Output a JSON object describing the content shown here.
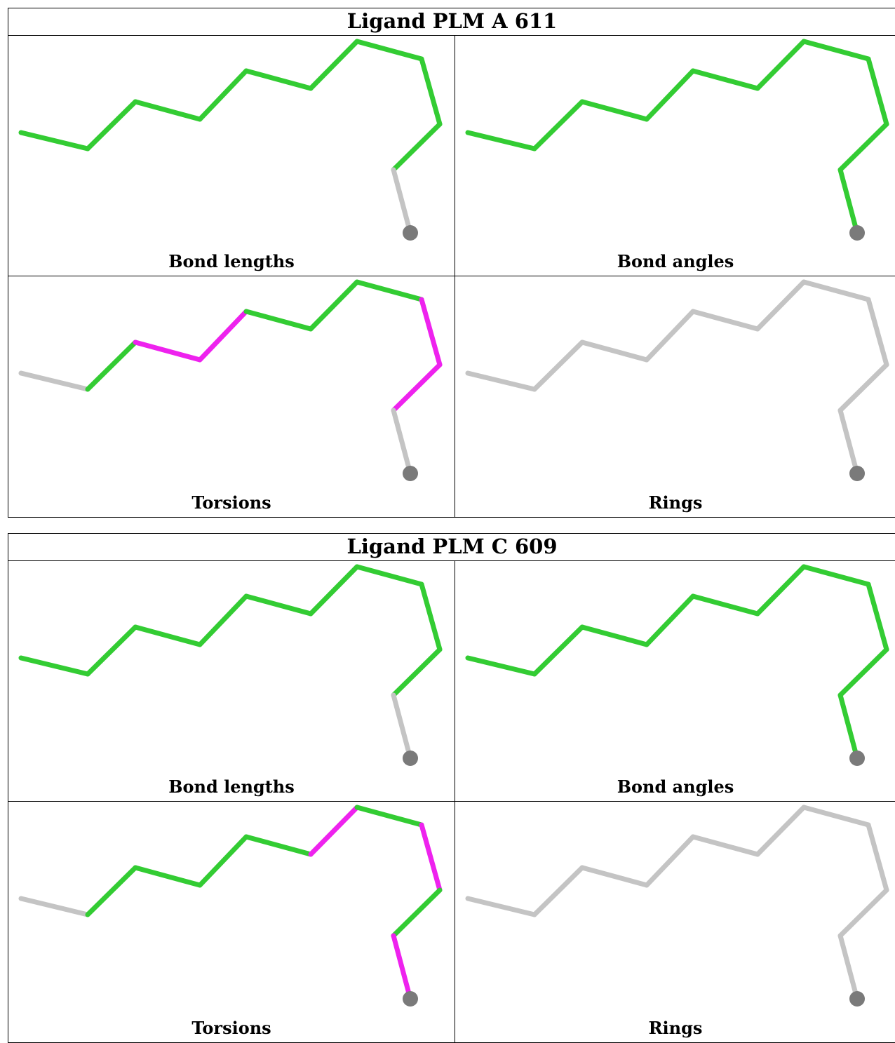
{
  "ligands": [
    {
      "title": "Ligand PLM A 611",
      "panels": [
        {
          "label": "Bond lengths",
          "bond_colors": [
            "green",
            "green",
            "green",
            "green",
            "green",
            "green",
            "green",
            "green",
            "green",
            "gray",
            "green"
          ]
        },
        {
          "label": "Bond angles",
          "bond_colors": [
            "green",
            "green",
            "green",
            "green",
            "green",
            "green",
            "green",
            "green",
            "green",
            "green",
            "green"
          ]
        },
        {
          "label": "Torsions",
          "bond_colors": [
            "gray",
            "green",
            "magenta",
            "magenta",
            "green",
            "green",
            "green",
            "magenta",
            "magenta",
            "gray",
            "gray"
          ]
        },
        {
          "label": "Rings",
          "bond_colors": [
            "gray",
            "gray",
            "gray",
            "gray",
            "gray",
            "gray",
            "gray",
            "gray",
            "gray",
            "gray",
            "gray"
          ]
        }
      ]
    },
    {
      "title": "Ligand PLM C 609",
      "panels": [
        {
          "label": "Bond lengths",
          "bond_colors": [
            "green",
            "green",
            "green",
            "green",
            "green",
            "green",
            "green",
            "green",
            "green",
            "gray",
            "green"
          ]
        },
        {
          "label": "Bond angles",
          "bond_colors": [
            "green",
            "green",
            "green",
            "green",
            "green",
            "green",
            "green",
            "green",
            "green",
            "green",
            "green"
          ]
        },
        {
          "label": "Torsions",
          "bond_colors": [
            "gray",
            "green",
            "green",
            "green",
            "green",
            "magenta",
            "green",
            "magenta",
            "green",
            "magenta",
            "gray"
          ]
        },
        {
          "label": "Rings",
          "bond_colors": [
            "gray",
            "gray",
            "gray",
            "gray",
            "gray",
            "gray",
            "gray",
            "gray",
            "gray",
            "gray",
            "gray"
          ]
        }
      ]
    }
  ],
  "colors": {
    "green": "#33cc33",
    "magenta": "#ee22ee",
    "gray": "#c4c4c4",
    "terminal_atom": "#7a7a7a"
  }
}
